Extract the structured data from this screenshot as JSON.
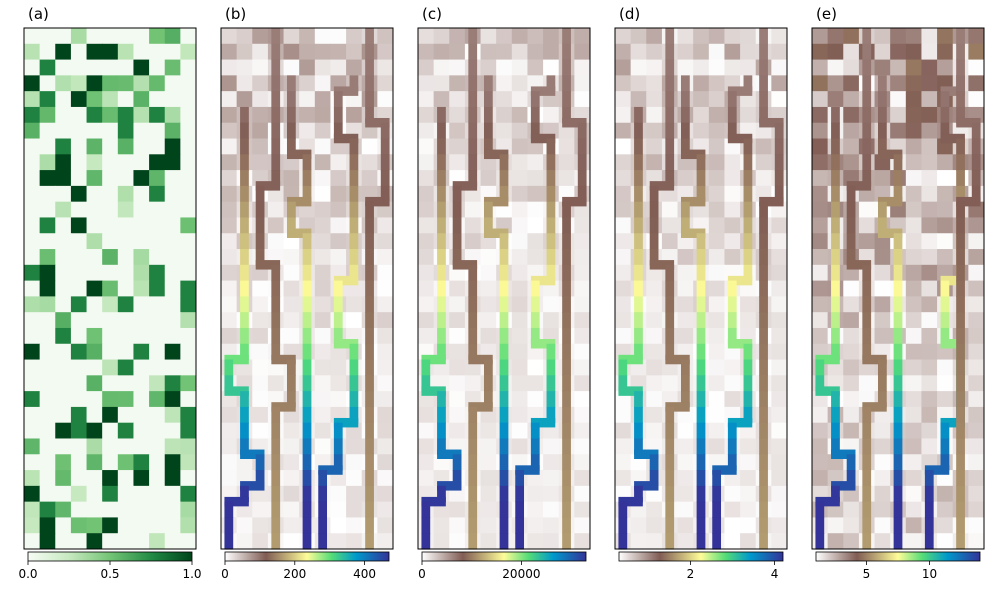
{
  "figure": {
    "background": "#ffffff"
  },
  "chart_data": [
    {
      "type": "heatmap",
      "panel_label": "(a)",
      "colormap": "Greens",
      "colorbar": {
        "min": 0.0,
        "max": 1.0,
        "ticks": [
          0.0,
          0.5,
          1.0
        ],
        "tick_labels": [
          "0.0",
          "0.5",
          "1.0"
        ]
      },
      "grid": {
        "rows": 33,
        "cols": 11
      },
      "description": "random dark-green cells scattered on near-white background"
    },
    {
      "type": "heatmap",
      "panel_label": "(b)",
      "colormap": "terrain_r",
      "colorbar": {
        "min": 0,
        "max": 470,
        "ticks": [
          0,
          200,
          400
        ],
        "tick_labels": [
          "0",
          "200",
          "400"
        ]
      }
    },
    {
      "type": "heatmap",
      "panel_label": "(c)",
      "colormap": "terrain_r",
      "colorbar": {
        "min": 0,
        "max": 33000,
        "ticks": [
          0,
          20000
        ],
        "tick_labels": [
          "0",
          "20000"
        ]
      }
    },
    {
      "type": "heatmap",
      "panel_label": "(d)",
      "colormap": "terrain_r",
      "colorbar": {
        "min": 0.3,
        "max": 4.2,
        "ticks": [
          2,
          4
        ],
        "tick_labels": [
          "2",
          "4"
        ]
      }
    },
    {
      "type": "heatmap",
      "panel_label": "(e)",
      "colormap": "terrain_r",
      "colorbar": {
        "min": 1.0,
        "max": 14.0,
        "ticks": [
          5,
          10
        ],
        "tick_labels": [
          "5",
          "10"
        ]
      }
    }
  ]
}
